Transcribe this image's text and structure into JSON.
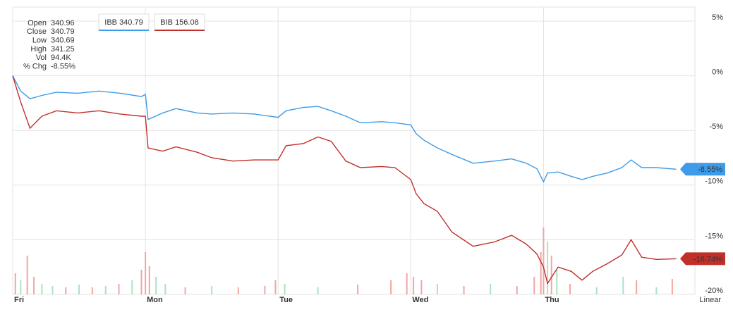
{
  "chart_data": {
    "type": "line",
    "x": [
      0,
      0.06,
      0.13,
      0.22,
      0.33,
      0.49,
      0.65,
      0.81,
      0.97,
      1.0,
      1.02,
      1.13,
      1.23,
      1.39,
      1.5,
      1.66,
      1.82,
      2.0,
      2.06,
      2.19,
      2.3,
      2.4,
      2.51,
      2.62,
      2.78,
      2.88,
      3.0,
      3.04,
      3.1,
      3.2,
      3.31,
      3.47,
      3.63,
      3.76,
      3.87,
      3.95,
      4.0,
      4.03,
      4.11,
      4.21,
      4.29,
      4.37,
      4.48,
      4.59,
      4.66,
      4.74,
      4.85,
      5.0
    ],
    "series": [
      {
        "name": "IBB",
        "price": "340.79",
        "last_label": "-8.55%",
        "color": "#3d9be9",
        "values": [
          0,
          -1.4,
          -2.1,
          -1.8,
          -1.5,
          -1.6,
          -1.4,
          -1.6,
          -1.9,
          -1.7,
          -4.0,
          -3.4,
          -3.0,
          -3.4,
          -3.5,
          -3.4,
          -3.5,
          -3.8,
          -3.2,
          -2.9,
          -2.8,
          -3.2,
          -3.7,
          -4.3,
          -4.2,
          -4.3,
          -4.5,
          -5.3,
          -5.9,
          -6.6,
          -7.2,
          -8.0,
          -7.8,
          -7.6,
          -8.0,
          -8.5,
          -9.7,
          -8.9,
          -8.8,
          -9.2,
          -9.5,
          -9.2,
          -8.9,
          -8.4,
          -7.7,
          -8.4,
          -8.4,
          -8.55
        ]
      },
      {
        "name": "BIB",
        "price": "156.08",
        "last_label": "-16.74%",
        "color": "#c0302b",
        "values": [
          0,
          -2.4,
          -4.8,
          -3.7,
          -3.2,
          -3.4,
          -3.2,
          -3.5,
          -3.7,
          -3.7,
          -6.6,
          -6.9,
          -6.5,
          -7.0,
          -7.5,
          -7.8,
          -7.7,
          -7.7,
          -6.4,
          -6.2,
          -5.6,
          -6.0,
          -7.8,
          -8.4,
          -8.3,
          -8.4,
          -9.5,
          -10.8,
          -11.7,
          -12.4,
          -14.3,
          -15.6,
          -15.2,
          -14.6,
          -15.4,
          -16.3,
          -17.5,
          -19.0,
          -17.5,
          -17.9,
          -18.7,
          -17.9,
          -17.2,
          -16.4,
          -15.0,
          -16.6,
          -16.8,
          -16.74
        ]
      }
    ],
    "xlim": [
      0,
      5.13
    ],
    "xticks": [
      {
        "value": 0,
        "label": "Fri"
      },
      {
        "value": 1,
        "label": "Mon"
      },
      {
        "value": 2,
        "label": "Tue"
      },
      {
        "value": 3,
        "label": "Wed"
      },
      {
        "value": 4,
        "label": "Thu"
      }
    ],
    "ylim": [
      -20,
      5
    ],
    "yticks": [
      {
        "value": 5,
        "label": "5%"
      },
      {
        "value": 0,
        "label": "0%"
      },
      {
        "value": -5,
        "label": "-5%"
      },
      {
        "value": -10,
        "label": "-10%"
      },
      {
        "value": -15,
        "label": "-15%"
      },
      {
        "value": -20,
        "label": "-20%"
      }
    ],
    "grid": true,
    "scale": "Linear",
    "volume": {
      "x": [
        0.02,
        0.06,
        0.11,
        0.16,
        0.22,
        0.3,
        0.4,
        0.5,
        0.6,
        0.7,
        0.8,
        0.9,
        0.97,
        1.0,
        1.03,
        1.08,
        1.15,
        1.3,
        1.5,
        1.7,
        1.9,
        1.98,
        2.05,
        2.3,
        2.6,
        2.85,
        2.97,
        3.02,
        3.08,
        3.2,
        3.4,
        3.6,
        3.8,
        3.93,
        3.98,
        4.0,
        4.03,
        4.06,
        4.1,
        4.2,
        4.4,
        4.6,
        4.7,
        4.85,
        4.97
      ],
      "values": [
        30,
        20,
        55,
        25,
        15,
        12,
        10,
        14,
        10,
        12,
        15,
        20,
        35,
        60,
        40,
        25,
        15,
        10,
        12,
        10,
        12,
        20,
        15,
        10,
        14,
        20,
        30,
        25,
        20,
        15,
        12,
        15,
        12,
        25,
        60,
        95,
        75,
        55,
        35,
        15,
        10,
        25,
        20,
        10,
        22
      ],
      "tone": [
        "r",
        "g",
        "r",
        "r",
        "g",
        "g",
        "r",
        "g",
        "r",
        "g",
        "r",
        "g",
        "r",
        "r",
        "r",
        "g",
        "g",
        "r",
        "g",
        "r",
        "r",
        "r",
        "g",
        "g",
        "r",
        "r",
        "r",
        "r",
        "r",
        "g",
        "r",
        "g",
        "r",
        "r",
        "r",
        "r",
        "g",
        "r",
        "g",
        "r",
        "g",
        "g",
        "r",
        "g",
        "r"
      ],
      "colors": {
        "r": "#f2a5a5",
        "g": "#a9e3c4"
      },
      "vlim": [
        0,
        100
      ]
    },
    "tooltip": [
      {
        "label": "Open",
        "value": "340.96"
      },
      {
        "label": "Close",
        "value": "340.79"
      },
      {
        "label": "Low",
        "value": "340.69"
      },
      {
        "label": "High",
        "value": "341.25"
      },
      {
        "label": "Vol",
        "value": "94.4K"
      },
      {
        "label": "% Chg",
        "value": "-8.55%"
      }
    ]
  }
}
